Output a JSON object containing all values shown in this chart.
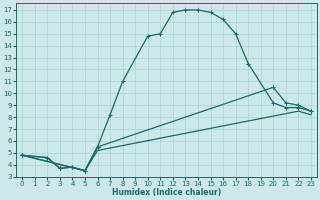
{
  "xlabel": "Humidex (Indice chaleur)",
  "bg_color": "#cce8e8",
  "line_color": "#1a6b6b",
  "grid_color": "#aad4d4",
  "xlim": [
    -0.5,
    23.5
  ],
  "ylim": [
    3,
    17.6
  ],
  "xticks": [
    0,
    1,
    2,
    3,
    4,
    5,
    6,
    7,
    8,
    9,
    10,
    11,
    12,
    13,
    14,
    15,
    16,
    17,
    18,
    19,
    20,
    21,
    22,
    23
  ],
  "yticks": [
    3,
    4,
    5,
    6,
    7,
    8,
    9,
    10,
    11,
    12,
    13,
    14,
    15,
    16,
    17
  ],
  "curve1_x": [
    0,
    2,
    3,
    4,
    5,
    6,
    7,
    8,
    10,
    11,
    12,
    13,
    14,
    15,
    16,
    17,
    18,
    20,
    21,
    22,
    23
  ],
  "curve1_y": [
    4.8,
    4.6,
    3.7,
    3.8,
    3.5,
    5.5,
    8.2,
    11.0,
    14.8,
    15.0,
    16.8,
    17.0,
    17.0,
    16.8,
    16.2,
    15.0,
    12.5,
    9.2,
    8.8,
    8.8,
    8.5
  ],
  "curve2_x": [
    0,
    2,
    3,
    4,
    5,
    6
  ],
  "curve2_y": [
    4.8,
    4.6,
    3.7,
    3.8,
    3.5,
    5.5
  ],
  "curve3_x": [
    0,
    5,
    6,
    20,
    21,
    22,
    23
  ],
  "curve3_y": [
    4.8,
    3.5,
    5.5,
    10.5,
    9.2,
    9.0,
    8.5
  ],
  "curve4_x": [
    0,
    5,
    6,
    22,
    23
  ],
  "curve4_y": [
    4.8,
    3.5,
    5.2,
    8.5,
    8.2
  ]
}
